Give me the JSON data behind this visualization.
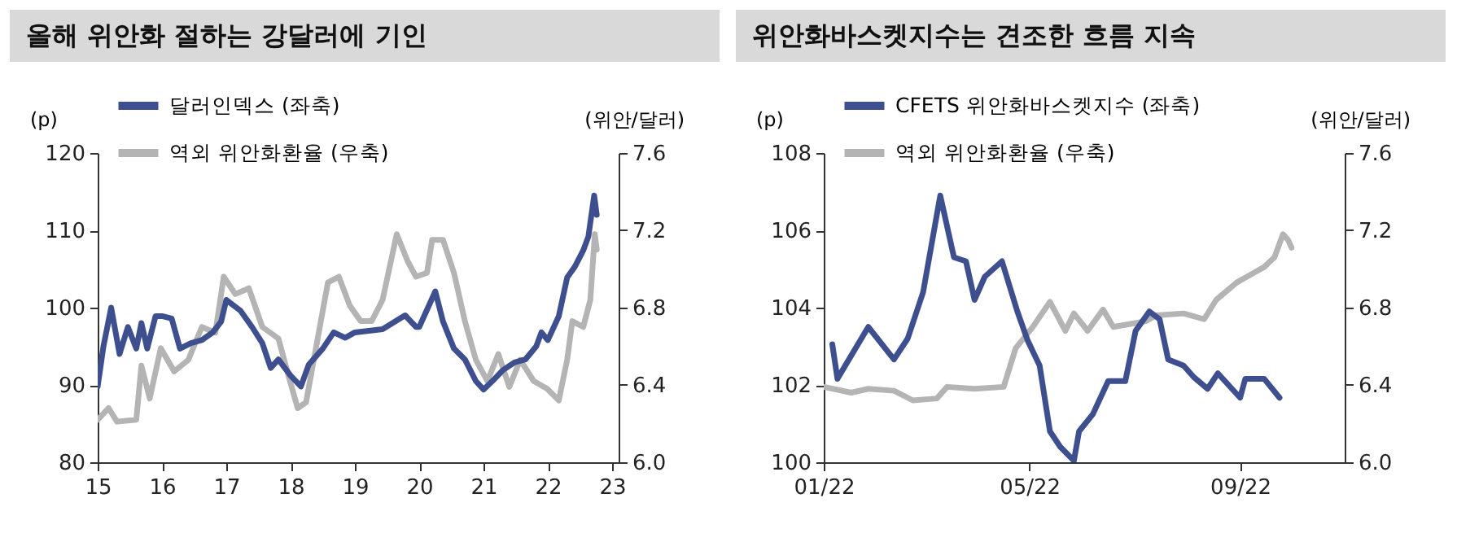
{
  "chart_data": [
    {
      "type": "line",
      "title": "올해 위안화 절하는 강달러에 기인",
      "ylabel": "(p)",
      "y2label": "(위안/달러)",
      "legend": "top left",
      "xlim": [
        15,
        23.1
      ],
      "xticks": [
        15,
        16,
        17,
        18,
        19,
        20,
        21,
        22,
        23
      ],
      "ylim": [
        80,
        120
      ],
      "yticks": [
        80,
        90,
        100,
        110,
        120
      ],
      "y2lim": [
        6.0,
        7.6
      ],
      "y2ticks": [
        {
          "value": 6.0,
          "label": "6.0"
        },
        6.4,
        6.8,
        7.2,
        7.6
      ],
      "series": [
        {
          "name": "역외 위안화환율 (우축)",
          "color": "#b4b4b4",
          "axis": "y2",
          "x": [
            15.0,
            15.17,
            15.3,
            15.6,
            15.68,
            15.81,
            15.98,
            16.19,
            16.41,
            16.62,
            16.83,
            16.96,
            17.14,
            17.35,
            17.56,
            17.81,
            17.99,
            18.11,
            18.24,
            18.41,
            18.58,
            18.75,
            18.92,
            19.09,
            19.26,
            19.43,
            19.65,
            19.82,
            19.95,
            20.12,
            20.2,
            20.37,
            20.54,
            20.71,
            20.88,
            21.06,
            21.23,
            21.4,
            21.57,
            21.78,
            21.99,
            22.17,
            22.3,
            22.38,
            22.55,
            22.66,
            22.73,
            22.76
          ],
          "values": [
            6.22,
            6.28,
            6.21,
            6.22,
            6.5,
            6.33,
            6.59,
            6.47,
            6.53,
            6.7,
            6.67,
            6.96,
            6.87,
            6.9,
            6.7,
            6.64,
            6.42,
            6.28,
            6.31,
            6.62,
            6.93,
            6.96,
            6.81,
            6.73,
            6.73,
            6.84,
            7.18,
            7.04,
            6.96,
            6.98,
            7.15,
            7.15,
            6.98,
            6.73,
            6.53,
            6.42,
            6.56,
            6.39,
            6.53,
            6.42,
            6.38,
            6.32,
            6.53,
            6.73,
            6.7,
            6.84,
            7.18,
            7.1
          ]
        },
        {
          "name": "달러인덱스 (좌축)",
          "color": "#3d4f8e",
          "x": [
            15.0,
            15.09,
            15.21,
            15.34,
            15.47,
            15.6,
            15.68,
            15.77,
            15.9,
            16.0,
            16.15,
            16.28,
            16.45,
            16.62,
            16.79,
            16.92,
            17.0,
            17.22,
            17.4,
            17.56,
            17.69,
            17.81,
            18.0,
            18.16,
            18.28,
            18.5,
            18.67,
            18.85,
            19.0,
            19.43,
            19.78,
            19.95,
            20.0,
            20.25,
            20.37,
            20.54,
            20.71,
            20.88,
            21.0,
            21.15,
            21.3,
            21.48,
            21.65,
            21.82,
            21.9,
            22.0,
            22.17,
            22.3,
            22.42,
            22.55,
            22.63,
            22.72,
            22.76
          ],
          "values": [
            89.8,
            95,
            100,
            94,
            97.5,
            94.7,
            98,
            94.7,
            98.9,
            98.9,
            98.6,
            94.7,
            95.4,
            95.8,
            96.8,
            98.2,
            101,
            99.6,
            97.5,
            95.4,
            92.2,
            93.3,
            91.2,
            89.8,
            92.6,
            94.7,
            96.8,
            96.1,
            96.8,
            97.2,
            99,
            97.5,
            97.5,
            102.1,
            98.2,
            94.7,
            93.3,
            90.5,
            89.4,
            90.6,
            91.9,
            92.9,
            93.3,
            95,
            96.8,
            95.8,
            98.9,
            103.9,
            105.3,
            107.4,
            109.2,
            114.5,
            112
          ]
        }
      ]
    },
    {
      "type": "line",
      "title": "위안화바스켓지수는 견조한 흐름 지속",
      "ylabel": "(p)",
      "y2label": "(위안/달러)",
      "legend": "top left",
      "xlim": [
        "2022-01-01",
        "2022-11-01"
      ],
      "xticks": [
        {
          "value": "2022-01-01",
          "label": "01/22"
        },
        {
          "value": "2022-05-01",
          "label": "05/22"
        },
        {
          "value": "2022-09-01",
          "label": "09/22"
        }
      ],
      "ylim": [
        100,
        108
      ],
      "yticks": [
        100,
        102,
        104,
        106,
        108
      ],
      "y2lim": [
        6.0,
        7.6
      ],
      "y2ticks": [
        {
          "value": 6.0,
          "label": "6.0"
        },
        6.4,
        6.8,
        7.2,
        7.6
      ],
      "series": [
        {
          "name": "역외 위안화환율 (우축)",
          "color": "#b4b4b4",
          "axis": "y2",
          "x": [
            "2022-01-01",
            "2022-01-17",
            "2022-01-27",
            "2022-02-11",
            "2022-02-22",
            "2022-03-08",
            "2022-03-14",
            "2022-03-30",
            "2022-04-16",
            "2022-04-23",
            "2022-05-03",
            "2022-05-13",
            "2022-05-22",
            "2022-05-27",
            "2022-06-04",
            "2022-06-13",
            "2022-06-19",
            "2022-07-08",
            "2022-07-14",
            "2022-07-30",
            "2022-08-11",
            "2022-08-18",
            "2022-08-30",
            "2022-09-09",
            "2022-09-15",
            "2022-09-21",
            "2022-09-26",
            "2022-09-29",
            "2022-10-01"
          ],
          "values": [
            6.39,
            6.36,
            6.38,
            6.37,
            6.32,
            6.33,
            6.39,
            6.38,
            6.39,
            6.59,
            6.7,
            6.83,
            6.68,
            6.77,
            6.68,
            6.79,
            6.7,
            6.73,
            6.76,
            6.77,
            6.74,
            6.84,
            6.93,
            6.98,
            7.01,
            7.06,
            7.18,
            7.15,
            7.11
          ]
        },
        {
          "name": "CFETS 위안화바스켓지수 (좌축)",
          "color": "#3d4f8e",
          "x": [
            "2022-01-06",
            "2022-01-09",
            "2022-01-27",
            "2022-02-11",
            "2022-02-19",
            "2022-02-28",
            "2022-03-10",
            "2022-03-18",
            "2022-03-25",
            "2022-03-30",
            "2022-04-05",
            "2022-04-15",
            "2022-04-24",
            "2022-04-30",
            "2022-05-07",
            "2022-05-13",
            "2022-05-19",
            "2022-05-27",
            "2022-05-30",
            "2022-06-07",
            "2022-06-16",
            "2022-06-26",
            "2022-07-02",
            "2022-07-10",
            "2022-07-16",
            "2022-07-21",
            "2022-07-30",
            "2022-08-05",
            "2022-08-13",
            "2022-08-19",
            "2022-09-01",
            "2022-09-04",
            "2022-09-15",
            "2022-09-24"
          ],
          "values": [
            103.05,
            102.16,
            103.5,
            102.66,
            103.2,
            104.4,
            106.9,
            105.3,
            105.2,
            104.2,
            104.8,
            105.2,
            103.9,
            103.15,
            102.5,
            100.8,
            100.4,
            100.04,
            100.8,
            101.24,
            102.1,
            102.1,
            103.4,
            103.9,
            103.7,
            102.66,
            102.5,
            102.2,
            101.9,
            102.3,
            101.67,
            102.16,
            102.16,
            101.67
          ]
        }
      ]
    }
  ]
}
